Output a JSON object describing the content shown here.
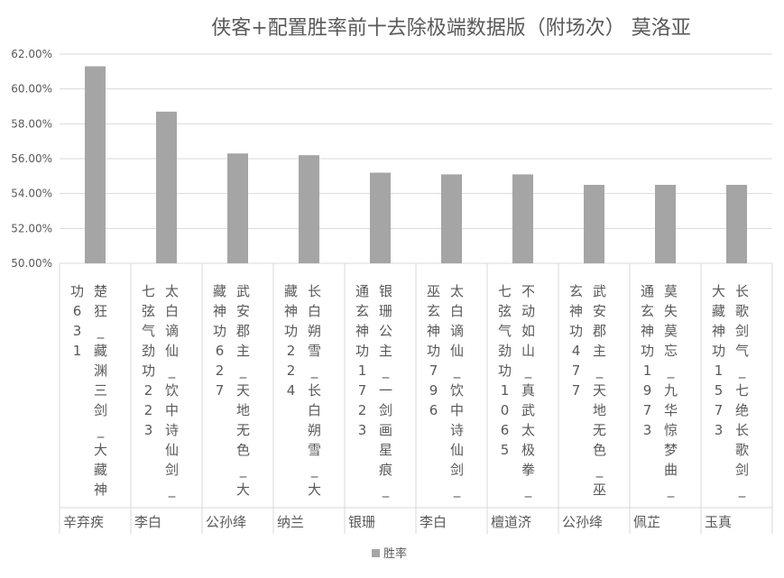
{
  "chart_data": {
    "type": "bar",
    "title": "侠客+配置胜率前十去除极端数据版（附场次） 莫洛亚",
    "xlabel": "",
    "ylabel": "",
    "ylim": [
      50,
      62
    ],
    "yticks": [
      "50.00%",
      "52.00%",
      "54.00%",
      "56.00%",
      "58.00%",
      "60.00%",
      "62.00%"
    ],
    "grid": true,
    "legend": "bottom",
    "bar_color": "#a5a5a5",
    "series": [
      {
        "name": "胜率",
        "values": [
          61.3,
          58.7,
          56.3,
          56.2,
          55.2,
          55.1,
          55.1,
          54.5,
          54.5,
          54.5
        ]
      }
    ],
    "categories": [
      {
        "group": "辛弃疾",
        "col1": "楚狂_藏渊三剑_大藏神",
        "col2": "功631"
      },
      {
        "group": "李白",
        "col1": "太白谪仙_饮中诗仙剑_",
        "col2": "七弦气劲功223"
      },
      {
        "group": "公孙绛",
        "col1": "武安郡主_天地无色_大",
        "col2": "藏神功627"
      },
      {
        "group": "纳兰",
        "col1": "长白朔雪_长白朔雪_大",
        "col2": "藏神功224"
      },
      {
        "group": "银珊",
        "col1": "银珊公主_一剑画星痕_",
        "col2": "通玄神功1723"
      },
      {
        "group": "李白",
        "col1": "太白谪仙_饮中诗仙剑_",
        "col2": "巫玄神功796"
      },
      {
        "group": "檀道济",
        "col1": "不动如山_真武太极拳_",
        "col2": "七弦气劲功1065"
      },
      {
        "group": "公孙绛",
        "col1": "武安郡主_天地无色_巫",
        "col2": "玄神功477"
      },
      {
        "group": "佩芷",
        "col1": "莫失莫忘_九华惊梦曲_",
        "col2": "通玄神功1973"
      },
      {
        "group": "玉真",
        "col1": "长歌剑气_七绝长歌剑_",
        "col2": "大藏神功1573"
      }
    ]
  }
}
